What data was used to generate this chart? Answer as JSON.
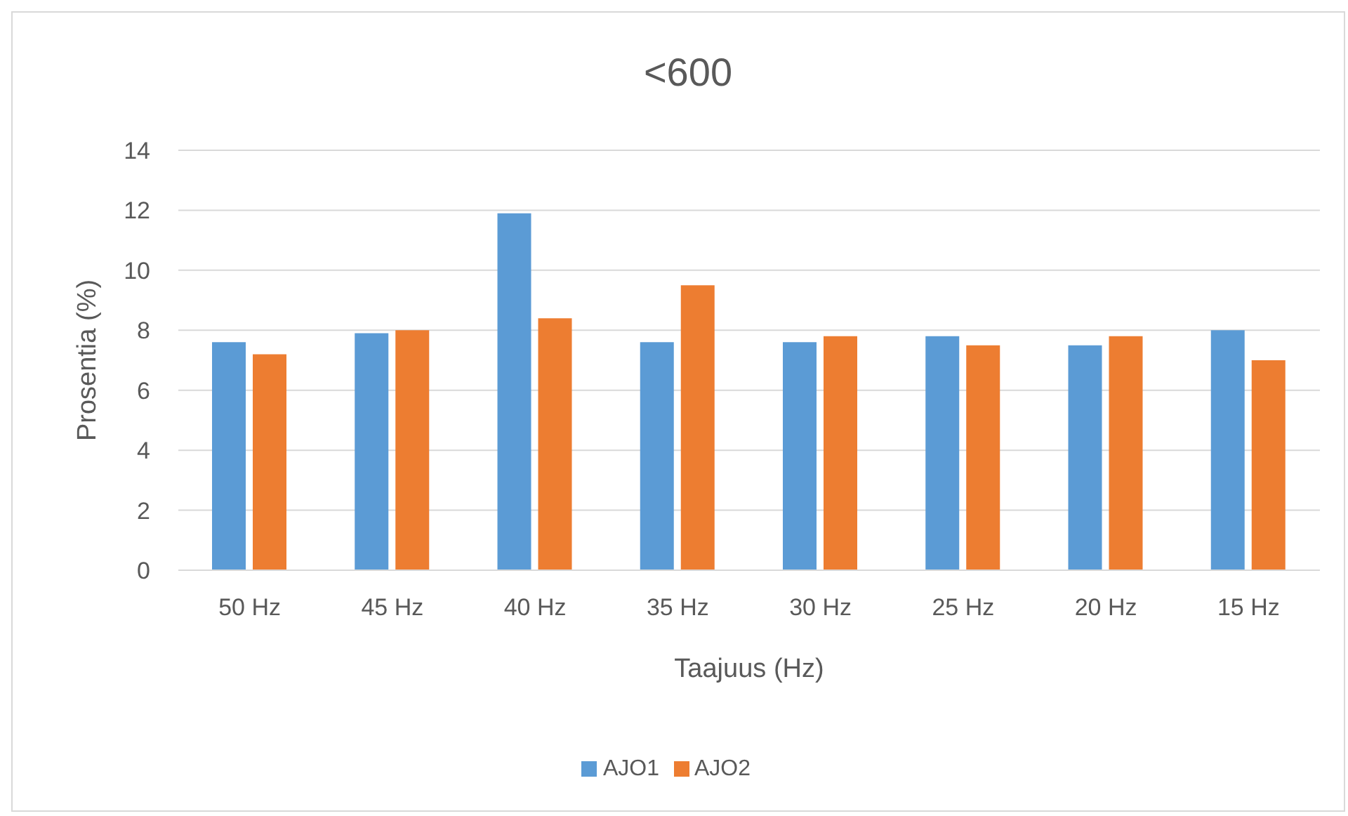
{
  "chart_data": {
    "type": "bar",
    "title": "<600",
    "xlabel": "Taajuus (Hz)",
    "ylabel": "Prosentia (%)",
    "categories": [
      "50 Hz",
      "45 Hz",
      "40 Hz",
      "35 Hz",
      "30 Hz",
      "25 Hz",
      "20 Hz",
      "15 Hz"
    ],
    "series": [
      {
        "name": "AJO1",
        "color": "#5b9bd5",
        "values": [
          7.6,
          7.9,
          11.9,
          7.6,
          7.6,
          7.8,
          7.5,
          8.0
        ]
      },
      {
        "name": "AJO2",
        "color": "#ed7d31",
        "values": [
          7.2,
          8.0,
          8.4,
          9.5,
          7.8,
          7.5,
          7.8,
          7.0
        ]
      }
    ],
    "ylim": [
      0,
      14
    ],
    "yticks": [
      0,
      2,
      4,
      6,
      8,
      10,
      12,
      14
    ],
    "grid": "y",
    "legend": "bottom"
  }
}
